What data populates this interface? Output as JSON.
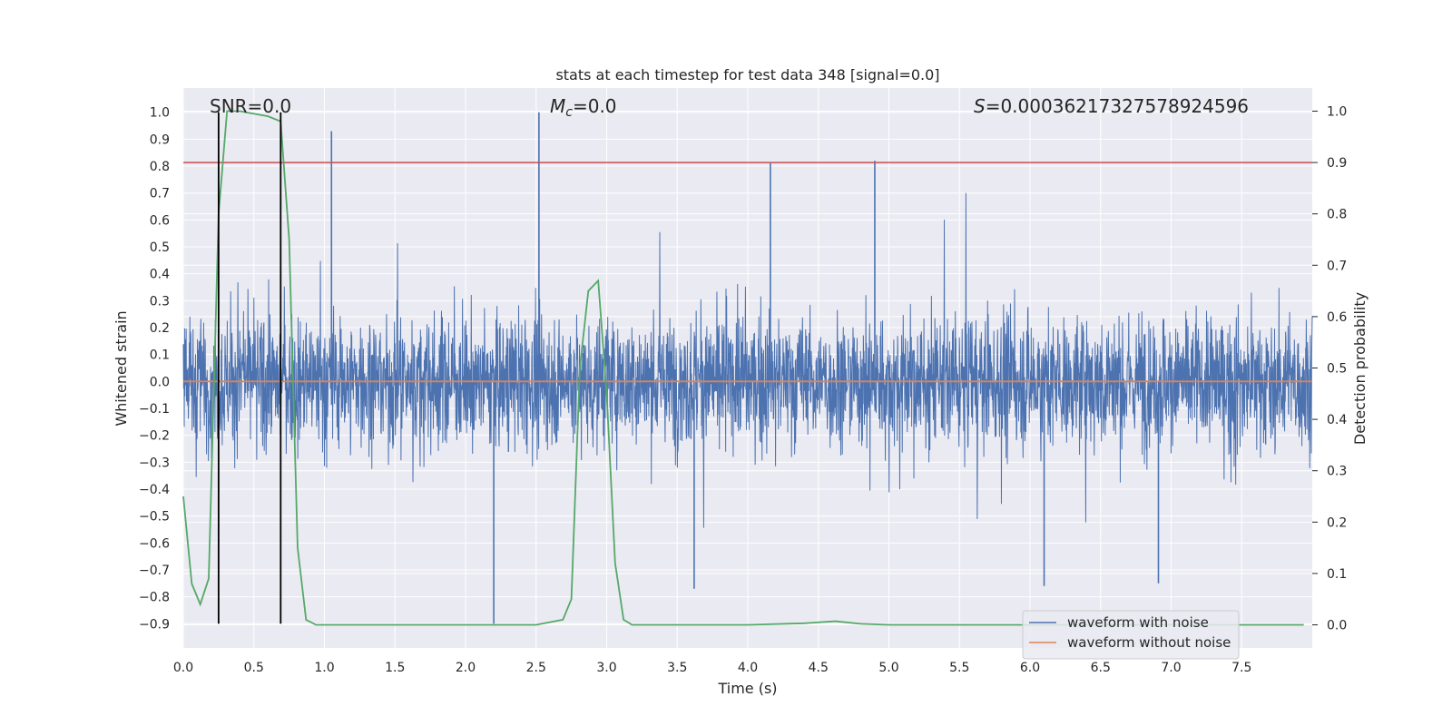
{
  "chart_data": {
    "type": "line",
    "title": "stats at each timestep for test data 348 [signal=0.0]",
    "xlabel": "Time (s)",
    "ylabel_left": "Whitened strain",
    "ylabel_right": "Detection probability",
    "xlim": [
      0.0,
      8.0
    ],
    "ylim_left": [
      -0.99,
      1.09
    ],
    "ylim_right": [
      -0.045,
      1.045
    ],
    "x_ticks": [
      "0.0",
      "0.5",
      "1.0",
      "1.5",
      "2.0",
      "2.5",
      "3.0",
      "3.5",
      "4.0",
      "4.5",
      "5.0",
      "5.5",
      "6.0",
      "6.5",
      "7.0",
      "7.5"
    ],
    "y_left_ticks": [
      "1.0",
      "0.9",
      "0.8",
      "0.7",
      "0.6",
      "0.5",
      "0.4",
      "0.3",
      "0.2",
      "0.1",
      "0.0",
      "−0.1",
      "−0.2",
      "−0.3",
      "−0.4",
      "−0.5",
      "−0.6",
      "−0.7",
      "−0.8",
      "−0.9"
    ],
    "y_right_ticks": [
      "1.0",
      "0.9",
      "0.8",
      "0.7",
      "0.6",
      "0.5",
      "0.4",
      "0.3",
      "0.2",
      "0.1",
      "0.0"
    ],
    "annotations": {
      "snr": "SNR=0.0",
      "mc_symbol": "M",
      "mc_sub": "c",
      "mc_value": "=0.0",
      "s_symbol": "S",
      "s_value": "=0.0003621732757892459​6"
    },
    "threshold_right": 0.9,
    "vlines_x": [
      0.25,
      0.69
    ],
    "noise_envelope": {
      "times": [
        0.0,
        8.0
      ],
      "typical_range": [
        -0.5,
        0.5
      ],
      "spikes": [
        {
          "t": 1.05,
          "v": 0.93
        },
        {
          "t": 2.52,
          "v": 1.0
        },
        {
          "t": 4.16,
          "v": 0.81
        },
        {
          "t": 4.9,
          "v": 0.82
        },
        {
          "t": 2.2,
          "v": -0.9
        },
        {
          "t": 3.62,
          "v": -0.77
        },
        {
          "t": 6.1,
          "v": -0.76
        },
        {
          "t": 6.91,
          "v": -0.75
        }
      ]
    },
    "series": [
      {
        "name": "waveform with noise",
        "color": "#4c72b0",
        "axis": "left"
      },
      {
        "name": "waveform without noise",
        "color": "#dd8452",
        "axis": "left",
        "values_constant": 0.0
      },
      {
        "name": "detection probability",
        "color": "#55a868",
        "axis": "right",
        "x": [
          0.0,
          0.06,
          0.12,
          0.18,
          0.25,
          0.31,
          0.4,
          0.6,
          0.69,
          0.75,
          0.81,
          0.87,
          0.94,
          1.5,
          2.0,
          2.5,
          2.69,
          2.75,
          2.81,
          2.87,
          2.94,
          3.0,
          3.06,
          3.12,
          3.18,
          3.5,
          4.0,
          4.4,
          4.62,
          4.8,
          5.0,
          6.0,
          7.0,
          7.94
        ],
        "values": [
          0.25,
          0.08,
          0.04,
          0.09,
          0.8,
          1.0,
          1.0,
          0.99,
          0.98,
          0.75,
          0.15,
          0.01,
          0.0,
          0.0,
          0.0,
          0.0,
          0.01,
          0.05,
          0.5,
          0.65,
          0.67,
          0.45,
          0.12,
          0.01,
          0.0,
          0.0,
          0.0,
          0.003,
          0.007,
          0.002,
          0.0,
          0.0,
          0.0,
          0.0
        ]
      }
    ],
    "legend": {
      "position": "bottom-right",
      "entries": [
        "waveform with noise",
        "waveform without noise"
      ]
    }
  },
  "colors": {
    "plot_bg": "#eaeaf2",
    "grid": "#ffffff",
    "noise": "#4c72b0",
    "clean": "#dd8452",
    "prob": "#55a868",
    "threshold": "#c44e52",
    "vline": "#000000"
  }
}
